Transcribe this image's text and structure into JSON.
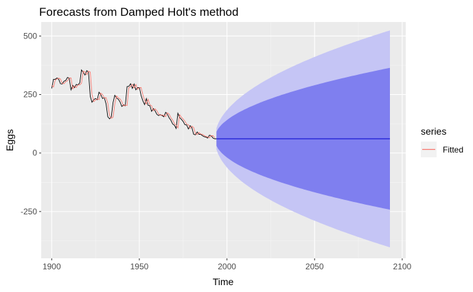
{
  "chart_data": {
    "type": "line",
    "title": "Forecasts from Damped Holt's method",
    "xlabel": "Time",
    "ylabel": "Eggs",
    "xlim": [
      1894,
      2102
    ],
    "ylim": [
      -450,
      560
    ],
    "x_ticks": [
      1900,
      1950,
      2000,
      2050,
      2100
    ],
    "x_tick_labels": [
      "1900",
      "1950",
      "2000",
      "2050",
      "2100"
    ],
    "y_ticks": [
      500,
      250,
      0,
      -250
    ],
    "y_tick_labels": [
      "500",
      "250",
      "0",
      "-250"
    ],
    "grid": true,
    "legend": {
      "title": "series",
      "position": "right",
      "entries": [
        {
          "label": "Fitted",
          "color": "#F8766D"
        }
      ]
    },
    "colors": {
      "panel": "#EBEBEB",
      "grid_major": "#FFFFFF",
      "grid_minor": "#F5F5F5",
      "observed": "#000000",
      "fitted": "#F8766D",
      "forecast_line": "#0000CC",
      "band_80": "#7F7FEF",
      "band_95": "#C5C5F5",
      "legend_key_bg": "#F2F2F2"
    },
    "series": [
      {
        "name": "Observed",
        "x": [
          1900,
          1901,
          1902,
          1903,
          1904,
          1905,
          1906,
          1907,
          1908,
          1909,
          1910,
          1911,
          1912,
          1913,
          1914,
          1915,
          1916,
          1917,
          1918,
          1919,
          1920,
          1921,
          1922,
          1923,
          1924,
          1925,
          1926,
          1927,
          1928,
          1929,
          1930,
          1931,
          1932,
          1933,
          1934,
          1935,
          1936,
          1937,
          1938,
          1939,
          1940,
          1941,
          1942,
          1943,
          1944,
          1945,
          1946,
          1947,
          1948,
          1949,
          1950,
          1951,
          1952,
          1953,
          1954,
          1955,
          1956,
          1957,
          1958,
          1959,
          1960,
          1961,
          1962,
          1963,
          1964,
          1965,
          1966,
          1967,
          1968,
          1969,
          1970,
          1971,
          1972,
          1973,
          1974,
          1975,
          1976,
          1977,
          1978,
          1979,
          1980,
          1981,
          1982,
          1983,
          1984,
          1985,
          1986,
          1987,
          1988,
          1989,
          1990,
          1991,
          1992,
          1993
        ],
        "values": [
          276,
          315,
          315,
          321,
          315,
          296,
          295,
          307,
          310,
          323,
          320,
          270,
          289,
          279,
          293,
          291,
          300,
          355,
          345,
          333,
          352,
          345,
          242,
          217,
          228,
          233,
          228,
          260,
          250,
          233,
          237,
          210,
          155,
          146,
          154,
          216,
          247,
          235,
          230,
          218,
          199,
          206,
          202,
          284,
          285,
          296,
          276,
          295,
          270,
          280,
          280,
          246,
          223,
          207,
          233,
          204,
          202,
          178,
          190,
          180,
          165,
          160,
          164,
          160,
          155,
          174,
          166,
          150,
          140,
          124,
          119,
          105,
          170,
          152,
          144,
          135,
          121,
          120,
          103,
          117,
          108,
          80,
          78,
          90,
          80,
          80,
          74,
          70,
          68,
          64,
          76,
          74,
          64,
          61
        ]
      },
      {
        "name": "Fitted",
        "x": [
          1900,
          1901,
          1902,
          1903,
          1904,
          1905,
          1906,
          1907,
          1908,
          1909,
          1910,
          1911,
          1912,
          1913,
          1914,
          1915,
          1916,
          1917,
          1918,
          1919,
          1920,
          1921,
          1922,
          1923,
          1924,
          1925,
          1926,
          1927,
          1928,
          1929,
          1930,
          1931,
          1932,
          1933,
          1934,
          1935,
          1936,
          1937,
          1938,
          1939,
          1940,
          1941,
          1942,
          1943,
          1944,
          1945,
          1946,
          1947,
          1948,
          1949,
          1950,
          1951,
          1952,
          1953,
          1954,
          1955,
          1956,
          1957,
          1958,
          1959,
          1960,
          1961,
          1962,
          1963,
          1964,
          1965,
          1966,
          1967,
          1968,
          1969,
          1970,
          1971,
          1972,
          1973,
          1974,
          1975,
          1976,
          1977,
          1978,
          1979,
          1980,
          1981,
          1982,
          1983,
          1984,
          1985,
          1986,
          1987,
          1988,
          1989,
          1990,
          1991,
          1992,
          1993
        ],
        "values": [
          290,
          282,
          312,
          316,
          320,
          316,
          298,
          296,
          305,
          309,
          321,
          321,
          274,
          287,
          280,
          291,
          291,
          298,
          350,
          346,
          335,
          350,
          346,
          250,
          220,
          226,
          232,
          228,
          256,
          250,
          235,
          237,
          213,
          160,
          148,
          153,
          210,
          244,
          236,
          231,
          220,
          201,
          205,
          203,
          278,
          284,
          294,
          278,
          293,
          272,
          279,
          280,
          249,
          226,
          209,
          230,
          206,
          202,
          181,
          189,
          181,
          167,
          161,
          163,
          160,
          156,
          172,
          166,
          151,
          141,
          126,
          120,
          107,
          164,
          153,
          145,
          136,
          123,
          121,
          105,
          115,
          109,
          83,
          79,
          88,
          81,
          80,
          75,
          71,
          69,
          65,
          74,
          74,
          66
        ],
        "color": "#F8766D"
      }
    ],
    "forecast": {
      "start": 1994,
      "end": 2093,
      "point": 61,
      "lo80_end": -242,
      "hi80_end": 364,
      "lo95_end": -403,
      "hi95_end": 524
    }
  }
}
